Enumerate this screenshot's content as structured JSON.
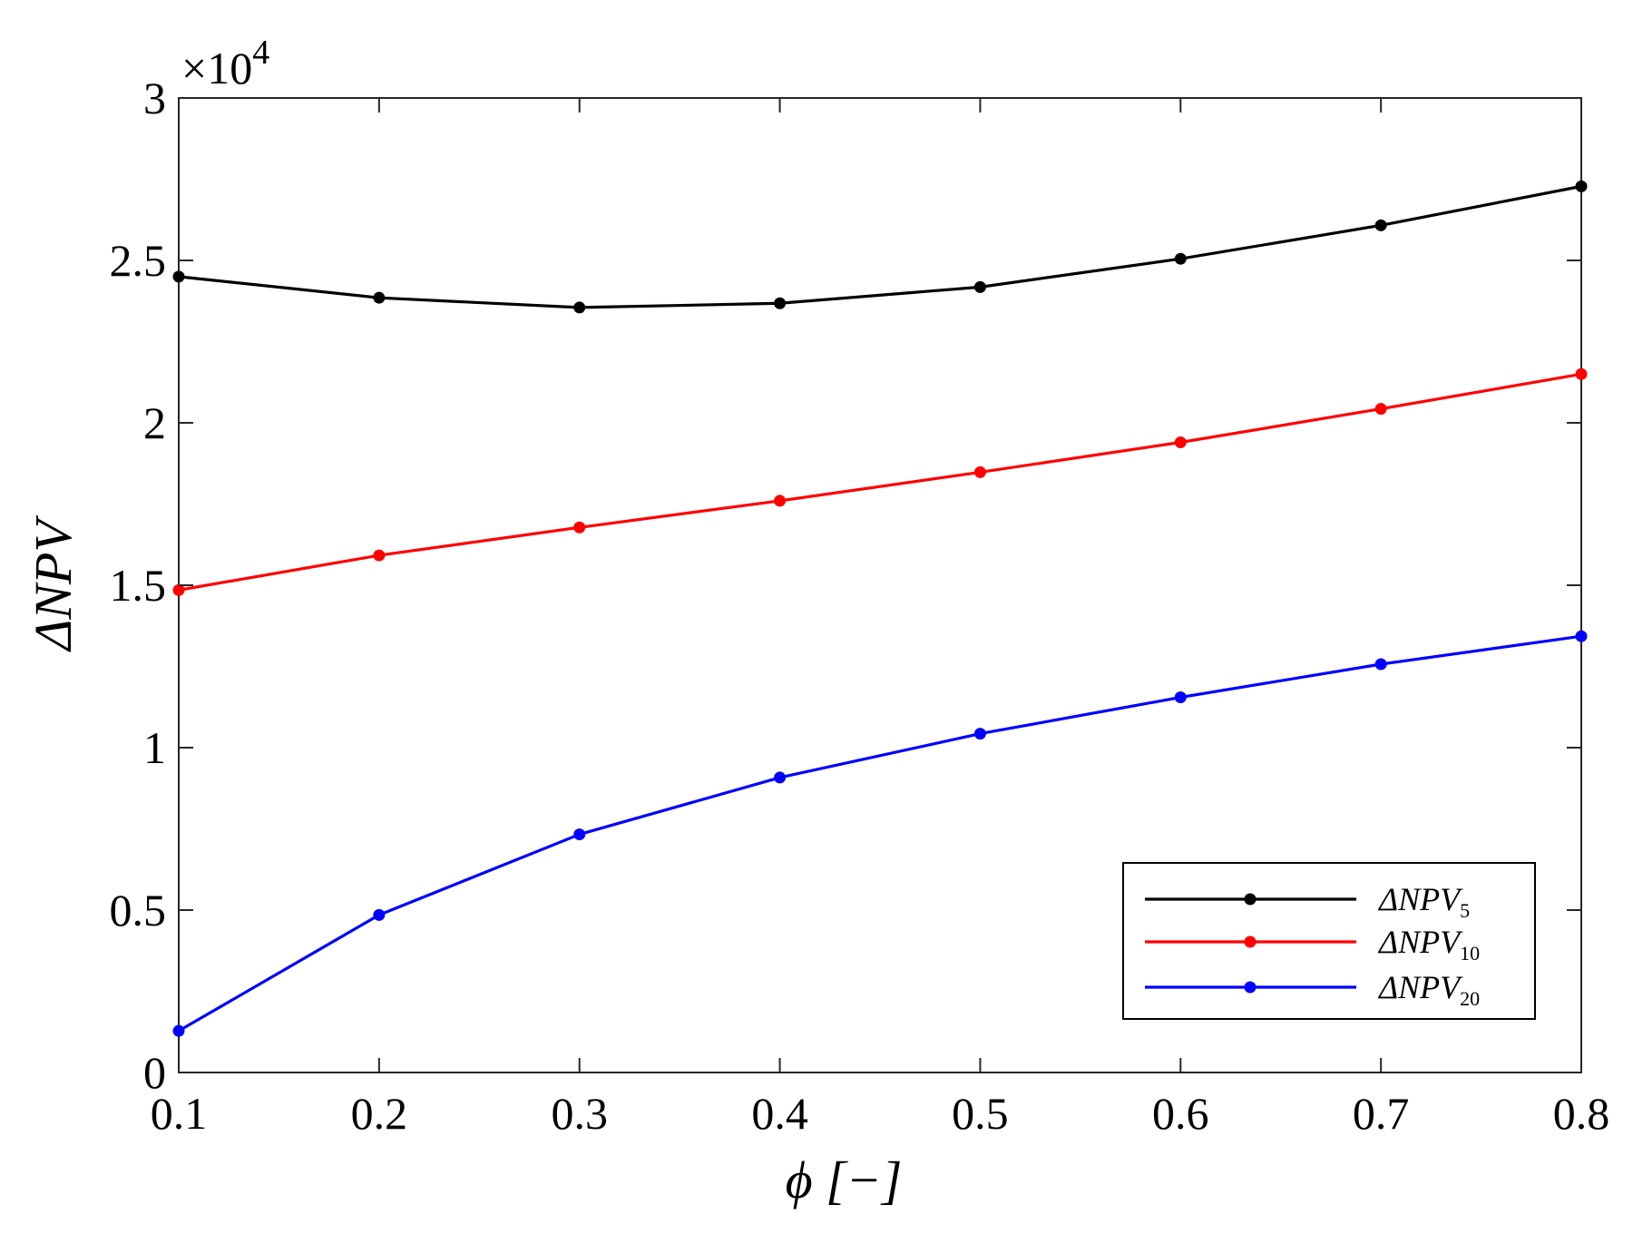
{
  "chart_data": {
    "type": "line",
    "xlabel": "ϕ  [−]",
    "ylabel": "ΔNPV",
    "y_multiplier_label": "×10",
    "y_multiplier_exponent": "4",
    "xlim": [
      0.1,
      0.8
    ],
    "ylim": [
      0,
      3
    ],
    "xticks": [
      0.1,
      0.2,
      0.3,
      0.4,
      0.5,
      0.6,
      0.7,
      0.8
    ],
    "xtick_labels": [
      "0.1",
      "0.2",
      "0.3",
      "0.4",
      "0.5",
      "0.6",
      "0.7",
      "0.8"
    ],
    "yticks": [
      0,
      0.5,
      1,
      1.5,
      2,
      2.5,
      3
    ],
    "ytick_labels": [
      "0",
      "0.5",
      "1",
      "1.5",
      "2",
      "2.5",
      "3"
    ],
    "grid": false,
    "legend_position": "bottom-right",
    "x": [
      0.1,
      0.2,
      0.3,
      0.4,
      0.5,
      0.6,
      0.7,
      0.8
    ],
    "series": [
      {
        "name": "ΔNPV",
        "subscript": "5",
        "color": "#000000",
        "values": [
          2.45,
          2.385,
          2.355,
          2.368,
          2.418,
          2.505,
          2.608,
          2.728
        ]
      },
      {
        "name": "ΔNPV",
        "subscript": "10",
        "color": "#ff0000",
        "values": [
          1.485,
          1.592,
          1.678,
          1.76,
          1.848,
          1.94,
          2.043,
          2.15
        ]
      },
      {
        "name": "ΔNPV",
        "subscript": "20",
        "color": "#0000ff",
        "values": [
          0.128,
          0.485,
          0.733,
          0.908,
          1.043,
          1.155,
          1.257,
          1.343
        ]
      }
    ]
  }
}
